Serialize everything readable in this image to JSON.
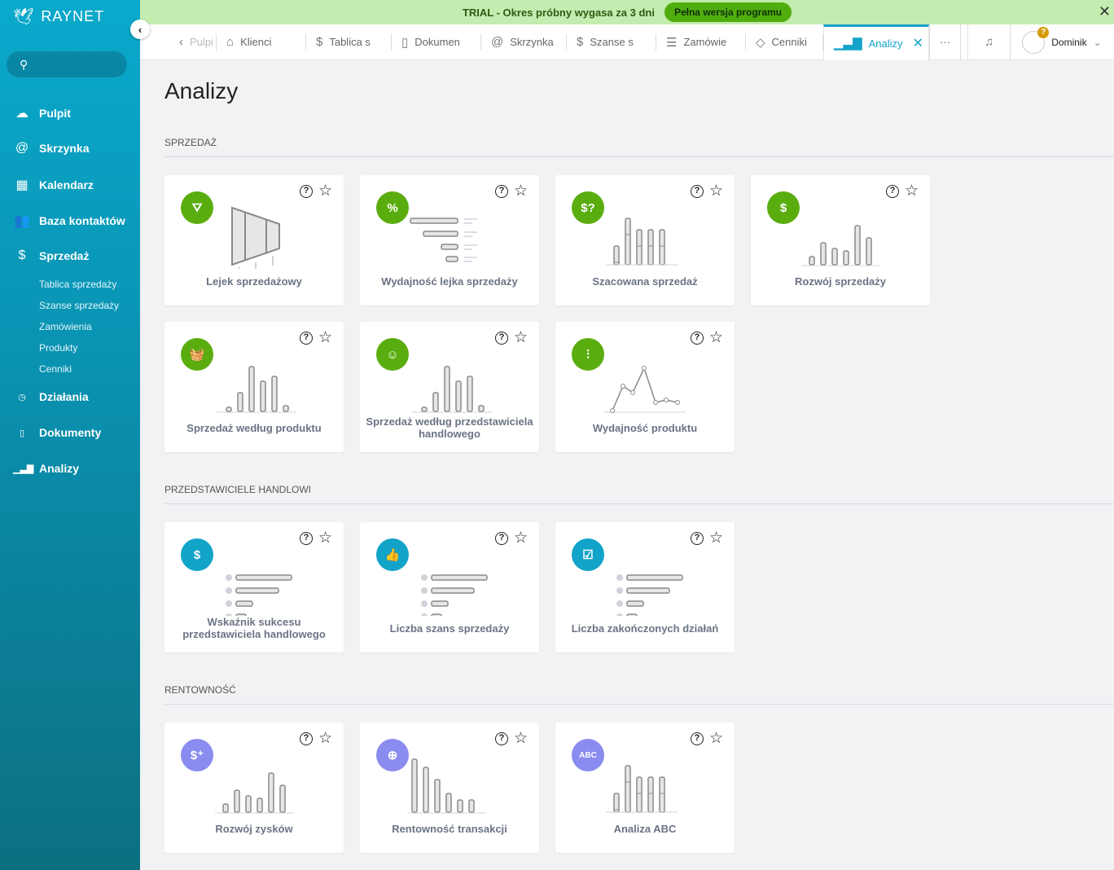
{
  "app": {
    "logo": "RAYNET",
    "collapse_icon": "chevron-left-icon"
  },
  "banner": {
    "text": "TRIAL - Okres próbny wygasa za 3 dni",
    "button": "Pełna wersja programu",
    "close": "✕"
  },
  "sidebar": {
    "items": [
      {
        "label": "Pulpit",
        "icon": "☁"
      },
      {
        "label": "Skrzynka",
        "icon": "@"
      },
      {
        "label": "Kalendarz",
        "icon": "▦"
      },
      {
        "label": "Baza kontaktów",
        "icon": "👥"
      },
      {
        "label": "Sprzedaż",
        "icon": "$"
      }
    ],
    "subitems": [
      "Tablica sprzedaży",
      "Szanse sprzedaży",
      "Zamówienia",
      "Produkty",
      "Cenniki"
    ],
    "items2": [
      {
        "label": "Działania",
        "icon": "◷"
      },
      {
        "label": "Dokumenty",
        "icon": "▯"
      },
      {
        "label": "Analizy",
        "icon": "▁▃▇"
      }
    ]
  },
  "tabs": [
    {
      "label": "Pulpi",
      "icon": "‹"
    },
    {
      "label": "Klienci",
      "icon": "⌂"
    },
    {
      "label": "Tablica s",
      "icon": "$"
    },
    {
      "label": "Dokumen",
      "icon": "▯"
    },
    {
      "label": "Skrzynka",
      "icon": "@"
    },
    {
      "label": "Szanse s",
      "icon": "$"
    },
    {
      "label": "Zamówie",
      "icon": "☰"
    },
    {
      "label": "Cenniki",
      "icon": "◇"
    },
    {
      "label": "Analizy",
      "icon": "▁▃▇",
      "close": "✕"
    }
  ],
  "header": {
    "more": "···",
    "bell": "🔔",
    "user": "Dominik",
    "badge": "?"
  },
  "page": {
    "title": "Analizy"
  },
  "colors": {
    "green": "#5aad0f",
    "blue": "#12a3c9",
    "purple": "#8a8cf0"
  },
  "sections": [
    {
      "title": "SPRZEDAŻ",
      "cards": [
        {
          "label": "Lejek sprzedażowy",
          "icon": "⛛",
          "color": "green",
          "ill": "funnel"
        },
        {
          "label": "Wydajność lejka sprzedaży",
          "icon": "%",
          "color": "green",
          "ill": "hbars"
        },
        {
          "label": "Szacowana sprzedaż",
          "icon": "$?",
          "color": "green",
          "ill": "stacked"
        },
        {
          "label": "Rozwój sprzedaży",
          "icon": "$",
          "color": "green",
          "ill": "growth"
        },
        {
          "label": "Sprzedaż według produktu",
          "icon": "🧺",
          "color": "green",
          "ill": "bars"
        },
        {
          "label": "Sprzedaż według przedstawiciela handlowego",
          "icon": "☺",
          "color": "green",
          "ill": "bars"
        },
        {
          "label": "Wydajność produktu",
          "icon": "⫶",
          "color": "green",
          "ill": "line"
        }
      ]
    },
    {
      "title": "PRZEDSTAWICIELE HANDLOWI",
      "cards": [
        {
          "label": "Wskaźnik sukcesu przedstawiciela handlowego",
          "icon": "$",
          "color": "blue",
          "ill": "list"
        },
        {
          "label": "Liczba szans sprzedaży",
          "icon": "👍",
          "color": "blue",
          "ill": "list"
        },
        {
          "label": "Liczba zakończonych działań",
          "icon": "☑",
          "color": "blue",
          "ill": "list"
        }
      ]
    },
    {
      "title": "RENTOWNOŚĆ",
      "cards": [
        {
          "label": "Rozwój zysków",
          "icon": "$⁺",
          "color": "purple",
          "ill": "growth"
        },
        {
          "label": "Rentowność transakcji",
          "icon": "⊕",
          "color": "purple",
          "ill": "desc"
        },
        {
          "label": "Analiza ABC",
          "icon": "ABC",
          "color": "purple",
          "ill": "stacked"
        }
      ]
    }
  ]
}
